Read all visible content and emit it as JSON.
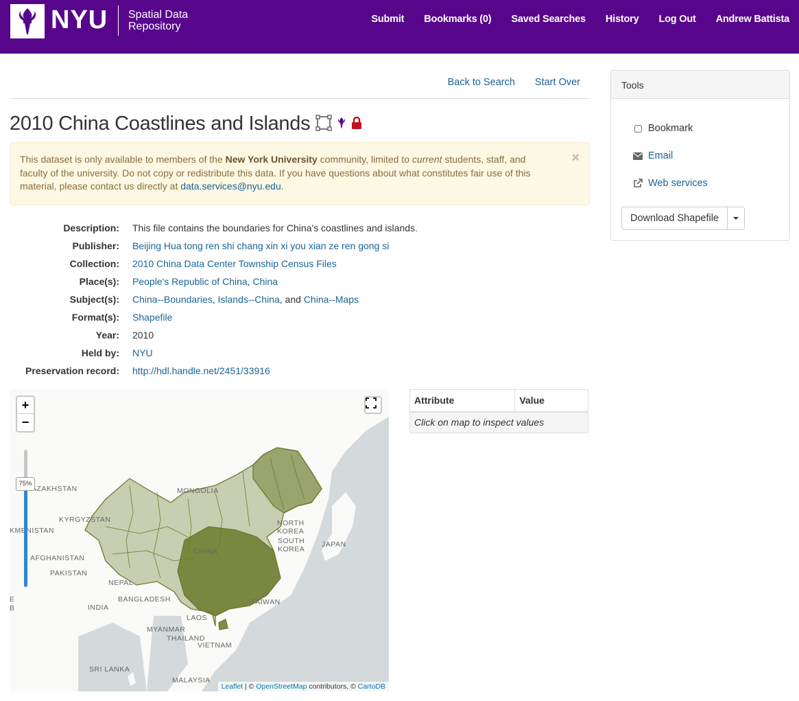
{
  "brand": {
    "logo_text": "NYU",
    "subtitle_line1": "Spatial Data",
    "subtitle_line2": "Repository",
    "color": "#57068c"
  },
  "nav": {
    "submit": "Submit",
    "bookmarks": "Bookmarks (0)",
    "saved_searches": "Saved Searches",
    "history": "History",
    "logout": "Log Out",
    "user": "Andrew Battista"
  },
  "links": {
    "back": "Back to Search",
    "start_over": "Start Over"
  },
  "record": {
    "title": "2010 China Coastlines and Islands",
    "icons": [
      "polygon-icon",
      "nyu-torch-icon",
      "lock-icon"
    ]
  },
  "alert": {
    "part1": "This dataset is only available to members of the ",
    "institution": "New York University",
    "part2": " community, limited to ",
    "emphasis": "current",
    "part3": " students, staff, and faculty of the university. Do not copy or redistribute this data. If you have questions about what constitutes fair use of this material, please contact us directly at ",
    "email": "data.services@nyu.edu",
    "part4": ".",
    "close": "×"
  },
  "metadata": {
    "description_label": "Description:",
    "description": "This file contains the boundaries for China's coastlines and islands.",
    "publisher_label": "Publisher:",
    "publisher": "Beijing Hua tong ren shi chang xin xi you xian ze ren gong si",
    "collection_label": "Collection:",
    "collection": "2010 China Data Center Township Census Files",
    "places_label": "Place(s):",
    "place1": "People's Republic of China",
    "place2": "China",
    "subjects_label": "Subject(s):",
    "subject1": "China--Boundaries",
    "subject2": "Islands--China",
    "subject3": "China--Maps",
    "format_label": "Format(s):",
    "format": "Shapefile",
    "year_label": "Year:",
    "year": "2010",
    "held_label": "Held by:",
    "held": "NYU",
    "preservation_label": "Preservation record:",
    "preservation": "http://hdl.handle.net/2451/33916"
  },
  "map": {
    "zoom_in": "+",
    "zoom_out": "−",
    "opacity": "75%",
    "opacity_value": 0.75,
    "labels": {
      "kazakhstan": "AZAKHSTAN",
      "mongolia": "MONGOLIA",
      "kyrgyzstan": "KYRGYZSTAN",
      "turkmenistan": "KMENISTAN",
      "afghanistan": "AFGHANISTAN",
      "pakistan": "PAKISTAN",
      "nepal": "NEPAL",
      "bangladesh": "BANGLADESH",
      "india": "INDIA",
      "myanmar": "MYANMAR",
      "thailand": "THAILAND",
      "vietnam": "VIETNAM",
      "laos": "LAOS",
      "srilanka": "SRI LANKA",
      "malaysia": "MALAYSIA",
      "north_korea": "NORTH KOREA",
      "south_korea": "SOUTH KOREA",
      "japan": "JAPAN",
      "china": "CHINA",
      "taiwan": "TAIWAN",
      "edge_e": "E",
      "edge_b": "B"
    },
    "attribution": {
      "leaflet": "Leaflet",
      "sep1": " | © ",
      "osm": "OpenStreetMap",
      "mid": " contributors, © ",
      "carto": "CartoDB"
    },
    "layer_color": "#6b7a2d"
  },
  "attributes": {
    "col_attribute": "Attribute",
    "col_value": "Value",
    "hint": "Click on map to inspect values"
  },
  "tools": {
    "heading": "Tools",
    "bookmark": "Bookmark",
    "email": "Email",
    "web_services": "Web services",
    "download": "Download Shapefile"
  }
}
